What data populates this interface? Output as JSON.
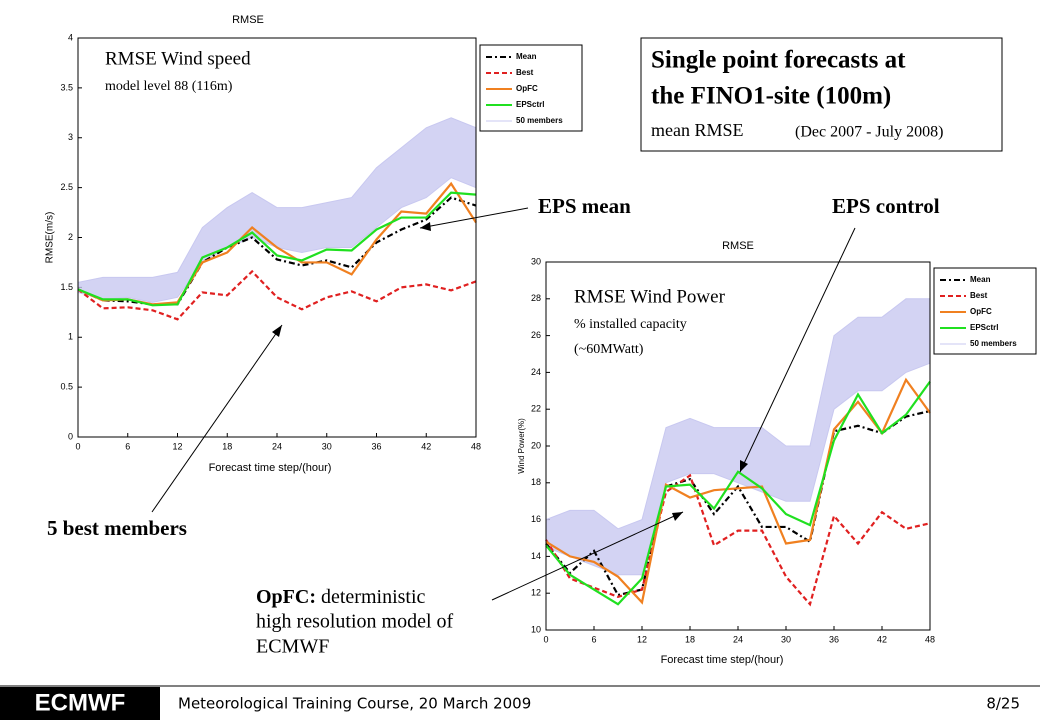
{
  "chart_data": [
    {
      "type": "line",
      "title": "RMSE",
      "x_label": "Forecast time step/(hour)",
      "y_label": "RMSE(m/s)",
      "x": [
        0,
        3,
        6,
        9,
        12,
        15,
        18,
        21,
        24,
        27,
        30,
        33,
        36,
        39,
        42,
        45,
        48
      ],
      "xlim": [
        0,
        48
      ],
      "xticks": [
        0,
        6,
        12,
        18,
        24,
        30,
        36,
        42,
        48
      ],
      "ylim": [
        0,
        4
      ],
      "yticks": [
        0,
        0.5,
        1,
        1.5,
        2,
        2.5,
        3,
        3.5,
        4
      ],
      "series": [
        {
          "name": "50 members",
          "color": "#c8c8f0",
          "low": [
            1.45,
            1.38,
            1.4,
            1.35,
            1.4,
            1.75,
            1.9,
            2.0,
            1.9,
            1.85,
            1.9,
            1.9,
            2.1,
            2.3,
            2.4,
            2.6,
            2.5
          ],
          "high": [
            1.55,
            1.6,
            1.6,
            1.6,
            1.65,
            2.1,
            2.3,
            2.45,
            2.3,
            2.3,
            2.35,
            2.4,
            2.7,
            2.9,
            3.1,
            3.2,
            3.1
          ]
        },
        {
          "name": "Mean",
          "color": "#000000",
          "dash": "dashdot",
          "values": [
            1.48,
            1.37,
            1.36,
            1.33,
            1.33,
            1.75,
            1.9,
            2.0,
            1.78,
            1.72,
            1.77,
            1.7,
            1.95,
            2.08,
            2.18,
            2.4,
            2.32
          ]
        },
        {
          "name": "Best",
          "color": "#e02020",
          "dash": "dash",
          "values": [
            1.48,
            1.29,
            1.3,
            1.27,
            1.18,
            1.45,
            1.42,
            1.66,
            1.4,
            1.28,
            1.4,
            1.46,
            1.36,
            1.5,
            1.53,
            1.47,
            1.56
          ]
        },
        {
          "name": "OpFC",
          "color": "#f08020",
          "values": [
            1.48,
            1.37,
            1.38,
            1.33,
            1.35,
            1.75,
            1.85,
            2.1,
            1.9,
            1.75,
            1.75,
            1.63,
            1.98,
            2.26,
            2.24,
            2.54,
            2.15
          ]
        },
        {
          "name": "EPSctrl",
          "color": "#20e020",
          "values": [
            1.48,
            1.38,
            1.38,
            1.32,
            1.33,
            1.8,
            1.9,
            2.05,
            1.82,
            1.77,
            1.88,
            1.87,
            2.08,
            2.2,
            2.2,
            2.45,
            2.43
          ]
        }
      ],
      "legend_order": [
        1,
        2,
        3,
        4,
        0
      ],
      "annotation": {
        "title": "RMSE Wind speed",
        "subtitle": "model level 88 (116m)"
      }
    },
    {
      "type": "line",
      "title": "RMSE",
      "x_label": "Forecast time step/(hour)",
      "y_label": "Wind Power(%)",
      "x": [
        0,
        3,
        6,
        9,
        12,
        15,
        18,
        21,
        24,
        27,
        30,
        33,
        36,
        39,
        42,
        45,
        48
      ],
      "xlim": [
        0,
        48
      ],
      "xticks": [
        0,
        6,
        12,
        18,
        24,
        30,
        36,
        42,
        48
      ],
      "ylim": [
        10,
        30
      ],
      "yticks": [
        10,
        12,
        14,
        16,
        18,
        20,
        22,
        24,
        26,
        28,
        30
      ],
      "series": [
        {
          "name": "50 members",
          "color": "#c8c8f0",
          "low": [
            14.5,
            14,
            13.5,
            13,
            13,
            18,
            18.5,
            18.5,
            18,
            17.5,
            17,
            17,
            22,
            23,
            23,
            24,
            24.5
          ],
          "high": [
            16,
            16.5,
            16.5,
            15.5,
            16,
            21,
            21.5,
            21,
            21,
            21,
            20,
            20,
            26,
            27,
            27,
            28,
            28
          ]
        },
        {
          "name": "Mean",
          "color": "#000000",
          "dash": "dashdot",
          "values": [
            14.7,
            13.1,
            14.3,
            11.9,
            12.2,
            17.8,
            18.2,
            16.3,
            17.8,
            15.6,
            15.6,
            14.8,
            20.8,
            21.1,
            20.7,
            21.6,
            21.9
          ]
        },
        {
          "name": "Best",
          "color": "#e02020",
          "dash": "dash",
          "values": [
            14.9,
            12.8,
            12.3,
            11.8,
            12.2,
            17.5,
            18.4,
            14.6,
            15.4,
            15.4,
            12.9,
            11.4,
            16.2,
            14.7,
            16.4,
            15.5,
            15.8
          ]
        },
        {
          "name": "OpFC",
          "color": "#f08020",
          "values": [
            14.8,
            14.0,
            13.7,
            12.9,
            11.5,
            17.9,
            17.2,
            17.6,
            17.7,
            17.8,
            14.7,
            14.9,
            20.9,
            22.4,
            20.7,
            23.6,
            21.8
          ]
        },
        {
          "name": "EPSctrl",
          "color": "#20e020",
          "values": [
            14.6,
            13.0,
            12.2,
            11.4,
            12.8,
            17.8,
            17.9,
            16.6,
            18.6,
            17.7,
            16.3,
            15.7,
            20.3,
            22.8,
            20.7,
            21.7,
            23.5
          ]
        }
      ],
      "legend_order": [
        1,
        2,
        3,
        4,
        0
      ],
      "annotation": {
        "title": "RMSE Wind Power",
        "subtitle": "% installed capacity",
        "subtitle2": "(~60MWatt)"
      }
    }
  ],
  "info_box": {
    "line1": "Single point forecasts at",
    "line2": "the FINO1-site (100m)",
    "line3": "mean RMSE",
    "period": "(Dec 2007 - July 2008)"
  },
  "callouts": {
    "eps_mean": "EPS mean",
    "eps_control": "EPS control",
    "best": "5 best members",
    "opfc_head": "OpFC:",
    "opfc_1": " deterministic",
    "opfc_2": "high resolution model of",
    "opfc_3": "ECMWF"
  },
  "footer": {
    "logo": "ECMWF",
    "course": "Meteorological Training Course, 20 March 2009",
    "page": "8/25"
  }
}
